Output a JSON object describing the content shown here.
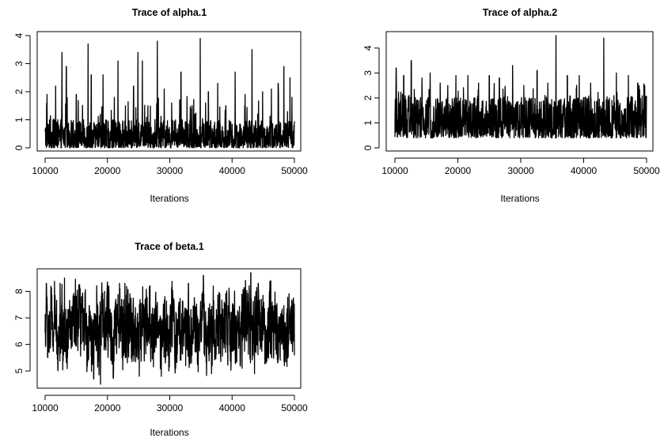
{
  "chart_data": [
    {
      "type": "line",
      "title": "Trace of alpha.1",
      "xlabel": "Iterations",
      "ylabel": "",
      "xlim": [
        10000,
        50000
      ],
      "ylim": [
        0,
        4
      ],
      "xticks": [
        "10000",
        "20000",
        "30000",
        "40000",
        "50000"
      ],
      "yticks": [
        "0",
        "1",
        "2",
        "3",
        "4"
      ],
      "series": [
        {
          "values_summary": {
            "baseline_min": 0.0,
            "baseline_max": 1.0,
            "typical_peak": 1.9
          },
          "spikes": [
            [
              10300,
              1.9
            ],
            [
              11700,
              2.2
            ],
            [
              12700,
              3.4
            ],
            [
              13400,
              2.9
            ],
            [
              15000,
              1.9
            ],
            [
              16900,
              3.7
            ],
            [
              17400,
              2.6
            ],
            [
              19300,
              2.6
            ],
            [
              21100,
              1.8
            ],
            [
              21700,
              3.1
            ],
            [
              22900,
              1.5
            ],
            [
              24200,
              2.2
            ],
            [
              24900,
              3.4
            ],
            [
              25600,
              3.1
            ],
            [
              26500,
              1.5
            ],
            [
              28000,
              3.8
            ],
            [
              29100,
              2.1
            ],
            [
              30300,
              1.6
            ],
            [
              31800,
              2.7
            ],
            [
              33500,
              1.4
            ],
            [
              34900,
              3.9
            ],
            [
              36200,
              2.0
            ],
            [
              37700,
              2.3
            ],
            [
              39000,
              1.5
            ],
            [
              40500,
              2.7
            ],
            [
              42100,
              1.9
            ],
            [
              43200,
              3.5
            ],
            [
              44900,
              2.0
            ],
            [
              46300,
              2.1
            ],
            [
              47400,
              2.3
            ],
            [
              48300,
              2.9
            ],
            [
              49300,
              2.5
            ]
          ]
        }
      ]
    },
    {
      "type": "line",
      "title": "Trace of alpha.2",
      "xlabel": "Iterations",
      "ylabel": "",
      "xlim": [
        10000,
        50000
      ],
      "ylim": [
        0,
        4.5
      ],
      "xticks": [
        "10000",
        "20000",
        "30000",
        "40000",
        "50000"
      ],
      "yticks": [
        "0",
        "1",
        "2",
        "3",
        "4"
      ],
      "series": [
        {
          "values_summary": {
            "baseline_min": 0.4,
            "baseline_max": 2.1,
            "typical_peak": 2.6
          },
          "spikes": [
            [
              10200,
              3.2
            ],
            [
              11400,
              2.9
            ],
            [
              12600,
              3.5
            ],
            [
              14300,
              2.8
            ],
            [
              15600,
              3.0
            ],
            [
              17200,
              2.6
            ],
            [
              18400,
              2.5
            ],
            [
              19700,
              2.9
            ],
            [
              21600,
              2.9
            ],
            [
              23300,
              2.6
            ],
            [
              25000,
              2.9
            ],
            [
              26600,
              2.8
            ],
            [
              28700,
              3.3
            ],
            [
              30500,
              2.5
            ],
            [
              32600,
              3.1
            ],
            [
              34300,
              2.6
            ],
            [
              35600,
              4.5
            ],
            [
              37400,
              2.9
            ],
            [
              39300,
              2.9
            ],
            [
              41100,
              2.6
            ],
            [
              43200,
              4.4
            ],
            [
              45200,
              3.0
            ],
            [
              47100,
              2.9
            ],
            [
              48600,
              2.6
            ],
            [
              49700,
              2.5
            ]
          ]
        }
      ]
    },
    {
      "type": "line",
      "title": "Trace of beta.1",
      "xlabel": "Iterations",
      "ylabel": "",
      "xlim": [
        10000,
        50000
      ],
      "ylim": [
        4.5,
        8.7
      ],
      "xticks": [
        "10000",
        "20000",
        "30000",
        "40000",
        "50000"
      ],
      "yticks": [
        "5",
        "6",
        "7",
        "8"
      ],
      "series": [
        {
          "values_summary": {
            "baseline_min": 5.4,
            "baseline_max": 7.9,
            "mean": 6.6
          },
          "spikes": [
            [
              10200,
              8.3
            ],
            [
              12400,
              8.3
            ],
            [
              13100,
              8.5
            ],
            [
              17800,
              4.7
            ],
            [
              18900,
              4.5
            ],
            [
              20200,
              8.2
            ],
            [
              22800,
              8.3
            ],
            [
              25100,
              4.8
            ],
            [
              26800,
              8.1
            ],
            [
              29300,
              5.3
            ],
            [
              33000,
              8.3
            ],
            [
              35400,
              8.6
            ],
            [
              36700,
              4.9
            ],
            [
              41600,
              5.1
            ],
            [
              43000,
              8.7
            ],
            [
              43600,
              4.9
            ],
            [
              44200,
              8.3
            ],
            [
              46200,
              8.4
            ],
            [
              48400,
              5.2
            ],
            [
              49600,
              7.5
            ]
          ]
        }
      ]
    }
  ]
}
